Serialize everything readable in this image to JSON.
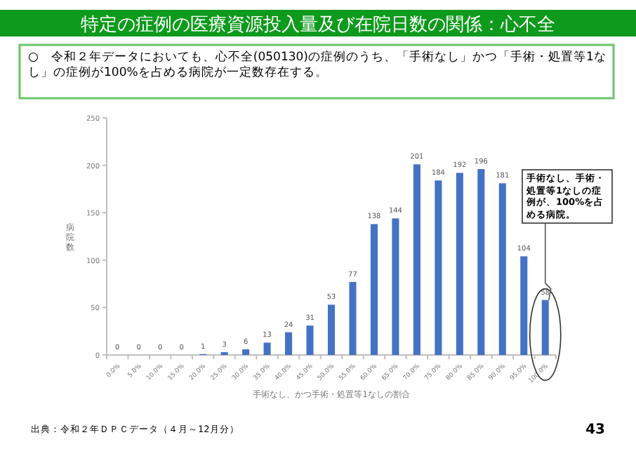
{
  "chart_data": {
    "type": "bar",
    "title": "特定の症例の医療資源投入量及び在院日数の関係：心不全",
    "subtitle": "○　令和２年データにおいても、心不全(050130)の症例のうち、「手術なし」かつ「手術・処置等1なし」の症例が100%を占める病院が一定数存在する。",
    "xlabel": "手術なし、かつ手術・処置等1なしの割合",
    "ylabel": "病院数",
    "categories": [
      "0.0%",
      "5.0%",
      "10.0%",
      "15.0%",
      "20.0%",
      "25.0%",
      "30.0%",
      "35.0%",
      "40.0%",
      "45.0%",
      "50.0%",
      "55.0%",
      "60.0%",
      "65.0%",
      "70.0%",
      "75.0%",
      "80.0%",
      "85.0%",
      "90.0%",
      "95.0%",
      "100.0%"
    ],
    "series": [
      {
        "color": "#4472c4",
        "values": [
          0,
          0,
          0,
          0,
          1,
          3,
          6,
          13,
          24,
          31,
          53,
          77,
          138,
          144,
          201,
          184,
          192,
          196,
          181,
          104,
          58
        ]
      }
    ],
    "ylim": [
      0,
      250
    ],
    "yticks": [
      0,
      50,
      100,
      150,
      200,
      250
    ],
    "grid": false,
    "data_labels": true,
    "annotations": [
      {
        "text": "手術なし、手術・処置等1なしの症例が、100%を占める病院。",
        "x": "100.0%",
        "y": 58
      },
      "出典：令和２年ＤＰＣデータ（４月～12月分）",
      "43"
    ]
  }
}
